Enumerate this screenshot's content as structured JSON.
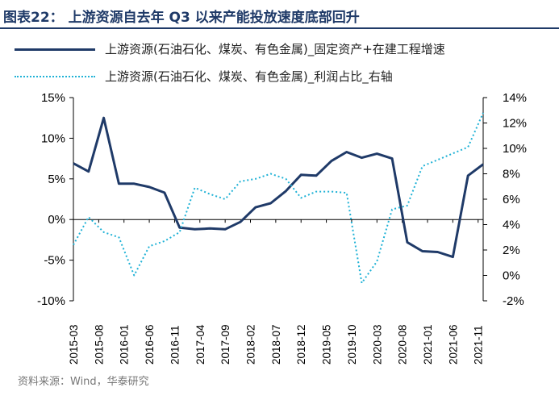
{
  "header": {
    "title": "图表22：  上游资源自去年 Q3 以来产能投放速度底部回升"
  },
  "legend": [
    {
      "label": "上游资源(石油石化、煤炭、有色金属)_固定资产+在建工程增速",
      "color": "#1f3a68",
      "style": "solid"
    },
    {
      "label": "上游资源(石油石化、煤炭、有色金属)_利润占比_右轴",
      "color": "#20b2d6",
      "style": "dotted"
    }
  ],
  "source": "资料来源：Wind，华泰研究",
  "chart_data": {
    "type": "line",
    "x": [
      "2015-03",
      "2015-06",
      "2015-08",
      "2015-12",
      "2016-03",
      "2016-06",
      "2016-09",
      "2016-11",
      "2016-12",
      "2017-03",
      "2017-04",
      "2017-06",
      "2017-09",
      "2017-12",
      "2018-02",
      "2018-05",
      "2018-07",
      "2018-09",
      "2018-12",
      "2019-03",
      "2019-05",
      "2019-08",
      "2019-10",
      "2019-12",
      "2020-03",
      "2020-05",
      "2020-08",
      "2020-09",
      "2020-12",
      "2021-01",
      "2021-03",
      "2021-06",
      "2021-09",
      "2021-11",
      "2021-12"
    ],
    "x_tick_labels": [
      "2015-03",
      "2015-08",
      "2016-01",
      "2016-06",
      "2016-11",
      "2017-04",
      "2017-09",
      "2018-02",
      "2018-07",
      "2018-12",
      "2019-05",
      "2019-10",
      "2020-03",
      "2020-08",
      "2021-01",
      "2021-06",
      "2021-11"
    ],
    "series": [
      {
        "name": "上游资源(石油石化、煤炭、有色金属)_固定资产+在建工程增速",
        "axis": "left",
        "color": "#1f3a68",
        "x": [
          "2015-03",
          "2015-06",
          "2015-09",
          "2015-12",
          "2016-03",
          "2016-06",
          "2016-09",
          "2016-12",
          "2017-03",
          "2017-06",
          "2017-09",
          "2017-12",
          "2018-03",
          "2018-06",
          "2018-09",
          "2018-12",
          "2019-03",
          "2019-06",
          "2019-09",
          "2019-12",
          "2020-03",
          "2020-06",
          "2020-09",
          "2020-12",
          "2021-03",
          "2021-06",
          "2021-09",
          "2021-12"
        ],
        "values": [
          6.9,
          5.9,
          12.5,
          4.4,
          4.4,
          4.0,
          3.3,
          -1.0,
          -1.2,
          -1.1,
          -1.2,
          -0.3,
          1.5,
          2.0,
          3.5,
          5.5,
          5.4,
          7.2,
          8.3,
          7.6,
          8.1,
          7.5,
          -2.8,
          -3.9,
          -4.0,
          -4.6,
          5.4,
          6.8
        ]
      },
      {
        "name": "上游资源(石油石化、煤炭、有色金属)_利润占比_右轴",
        "axis": "right",
        "color": "#20b2d6",
        "x": [
          "2015-03",
          "2015-06",
          "2015-09",
          "2015-12",
          "2016-03",
          "2016-06",
          "2016-09",
          "2016-12",
          "2017-03",
          "2017-06",
          "2017-09",
          "2017-12",
          "2018-03",
          "2018-06",
          "2018-09",
          "2018-12",
          "2019-03",
          "2019-06",
          "2019-09",
          "2019-12",
          "2020-03",
          "2020-06",
          "2020-09",
          "2020-12",
          "2021-03",
          "2021-06",
          "2021-09",
          "2021-12"
        ],
        "values": [
          2.4,
          4.6,
          3.4,
          3.0,
          0.0,
          2.3,
          2.7,
          3.4,
          6.9,
          6.4,
          6.0,
          7.4,
          7.6,
          8.0,
          7.6,
          6.1,
          6.6,
          6.6,
          6.5,
          -0.6,
          1.1,
          5.2,
          5.5,
          8.6,
          9.1,
          9.6,
          10.1,
          12.8
        ]
      }
    ],
    "y_left": {
      "min": -10,
      "max": 15,
      "ticks": [
        15,
        10,
        5,
        0,
        -5,
        -10
      ],
      "tick_labels": [
        "15%",
        "10%",
        "5%",
        "0%",
        "-5%",
        "-10%"
      ]
    },
    "y_right": {
      "min": -2,
      "max": 14,
      "ticks": [
        14,
        12,
        10,
        8,
        6,
        4,
        2,
        0,
        -2
      ],
      "tick_labels": [
        "14%",
        "12%",
        "10%",
        "8%",
        "6%",
        "4%",
        "2%",
        "0%",
        "-2%"
      ]
    },
    "grid": false,
    "legend_position": "top"
  }
}
